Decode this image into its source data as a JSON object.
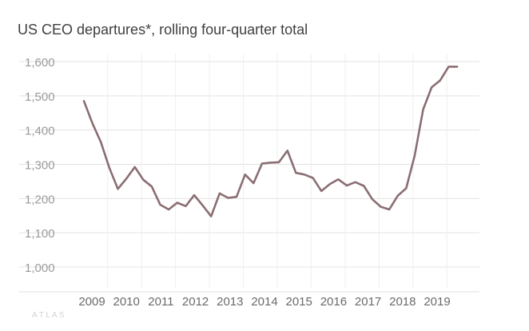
{
  "chart_data": {
    "type": "line",
    "title": "US CEO departures*, rolling four-quarter total",
    "xlabel": "",
    "ylabel": "",
    "ylim": [
      1000,
      1600
    ],
    "yticks": [
      1000,
      1100,
      1200,
      1300,
      1400,
      1500,
      1600
    ],
    "ytick_labels": [
      "1,000",
      "1,100",
      "1,200",
      "1,300",
      "1,400",
      "1,500",
      "1,600"
    ],
    "xlim": [
      2008.5,
      2020.0
    ],
    "xticks": [
      2009,
      2010,
      2011,
      2012,
      2013,
      2014,
      2015,
      2016,
      2017,
      2018,
      2019
    ],
    "xtick_labels": [
      "2009",
      "2010",
      "2011",
      "2012",
      "2013",
      "2014",
      "2015",
      "2016",
      "2017",
      "2018",
      "2019"
    ],
    "grid": "horizontal",
    "line_color": "#8a6e72",
    "series": [
      {
        "x": [
          2008.5,
          2008.75,
          2009.0,
          2009.25,
          2009.5,
          2009.75,
          2010.0,
          2010.25,
          2010.5,
          2010.75,
          2011.0,
          2011.25,
          2011.5,
          2011.75,
          2012.0,
          2012.25,
          2012.5,
          2012.75,
          2013.0,
          2013.25,
          2013.5,
          2013.75,
          2014.0,
          2014.25,
          2014.5,
          2014.75,
          2015.0,
          2015.25,
          2015.5,
          2015.75,
          2016.0,
          2016.25,
          2016.5,
          2016.75,
          2017.0,
          2017.25,
          2017.5,
          2017.75,
          2018.0,
          2018.25,
          2018.5,
          2018.75,
          2019.0,
          2019.25,
          2019.5
        ],
        "values": [
          1485,
          1420,
          1365,
          1290,
          1228,
          1258,
          1292,
          1255,
          1235,
          1182,
          1168,
          1188,
          1178,
          1210,
          1180,
          1148,
          1215,
          1202,
          1205,
          1270,
          1245,
          1302,
          1305,
          1306,
          1340,
          1275,
          1270,
          1260,
          1222,
          1242,
          1256,
          1238,
          1248,
          1237,
          1198,
          1176,
          1168,
          1208,
          1230,
          1325,
          1460,
          1525,
          1545,
          1585,
          1585
        ]
      }
    ]
  },
  "footnote": "A T L A S"
}
